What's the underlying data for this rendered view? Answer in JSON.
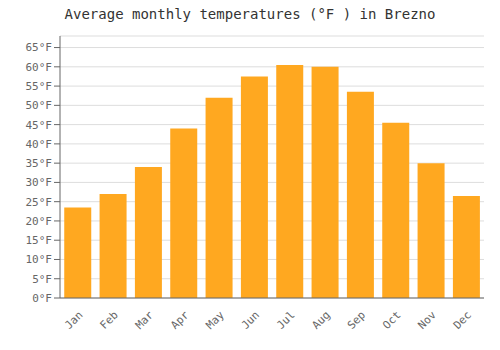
{
  "chart_data": {
    "type": "bar",
    "title": "Average monthly temperatures (°F ) in Brezno",
    "categories": [
      "Jan",
      "Feb",
      "Mar",
      "Apr",
      "May",
      "Jun",
      "Jul",
      "Aug",
      "Sep",
      "Oct",
      "Nov",
      "Dec"
    ],
    "values": [
      23.5,
      27.0,
      34.0,
      44.0,
      52.0,
      57.5,
      60.5,
      60.0,
      53.5,
      45.5,
      35.0,
      26.5
    ],
    "color": "#FFA820",
    "ylim": [
      0,
      68
    ],
    "yticks": [
      {
        "value": 0,
        "label": "0°F"
      },
      {
        "value": 5,
        "label": "5°F"
      },
      {
        "value": 10,
        "label": "10°F"
      },
      {
        "value": 15,
        "label": "15°F"
      },
      {
        "value": 20,
        "label": "20°F"
      },
      {
        "value": 25,
        "label": "25°F"
      },
      {
        "value": 30,
        "label": "30°F"
      },
      {
        "value": 35,
        "label": "35°F"
      },
      {
        "value": 40,
        "label": "40°F"
      },
      {
        "value": 45,
        "label": "45°F"
      },
      {
        "value": 50,
        "label": "50°F"
      },
      {
        "value": 55,
        "label": "55°F"
      },
      {
        "value": 60,
        "label": "60°F"
      },
      {
        "value": 65,
        "label": "65°F"
      }
    ],
    "grid": true
  }
}
